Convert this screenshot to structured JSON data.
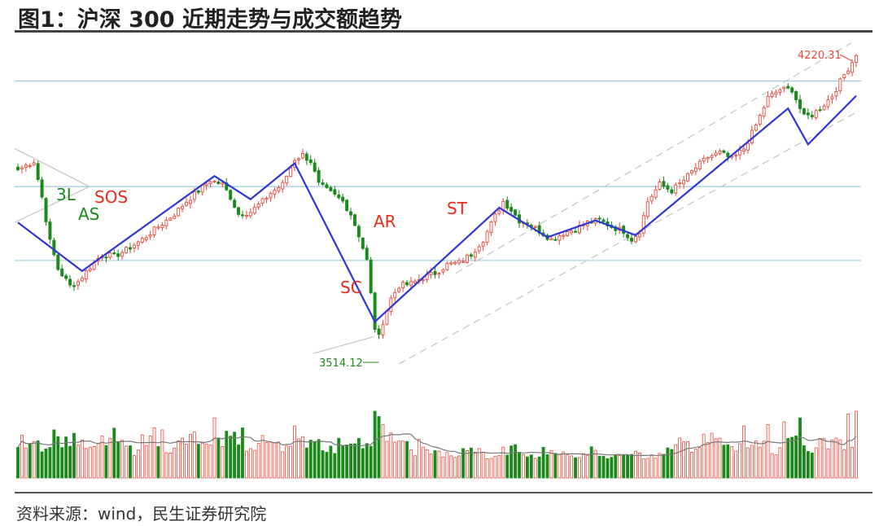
{
  "figure": {
    "title": "图1：沪深 300 近期走势与成交额趋势",
    "source": "资料来源：wind，民生证券研究院"
  },
  "colors": {
    "up": "#e84a3a",
    "up_fill": "#ffffff",
    "down": "#1b8a1b",
    "trend_line": "#2f36d8",
    "hline": "#9cc9dd",
    "channel": "#c4c4c4",
    "wyckoff_red": "#e82a1a",
    "wyckoff_green": "#1b8a1b",
    "ma_line": "#777777"
  },
  "chart_data": {
    "type": "candlestick",
    "title": "图1：沪深 300 近期走势与成交额趋势",
    "price_range": [
      3450,
      4250
    ],
    "annotations": [
      {
        "text": "4220.31",
        "kind": "max"
      },
      {
        "text": "3514.12",
        "kind": "min"
      },
      {
        "text": "3L",
        "color": "green"
      },
      {
        "text": "AS",
        "color": "green"
      },
      {
        "text": "SOS",
        "color": "red"
      },
      {
        "text": "SC",
        "color": "red"
      },
      {
        "text": "AR",
        "color": "red"
      },
      {
        "text": "ST",
        "color": "red"
      }
    ],
    "waypoints": [
      {
        "i": 0,
        "p": 3935
      },
      {
        "i": 4,
        "p": 3955
      },
      {
        "i": 6,
        "p": 3870
      },
      {
        "i": 8,
        "p": 3765
      },
      {
        "i": 10,
        "p": 3700
      },
      {
        "i": 13,
        "p": 3660
      },
      {
        "i": 15,
        "p": 3670
      },
      {
        "i": 18,
        "p": 3705
      },
      {
        "i": 21,
        "p": 3735
      },
      {
        "i": 24,
        "p": 3730
      },
      {
        "i": 27,
        "p": 3745
      },
      {
        "i": 31,
        "p": 3770
      },
      {
        "i": 35,
        "p": 3800
      },
      {
        "i": 39,
        "p": 3830
      },
      {
        "i": 42,
        "p": 3860
      },
      {
        "i": 45,
        "p": 3885
      },
      {
        "i": 48,
        "p": 3910
      },
      {
        "i": 51,
        "p": 3900
      },
      {
        "i": 53,
        "p": 3870
      },
      {
        "i": 55,
        "p": 3830
      },
      {
        "i": 58,
        "p": 3835
      },
      {
        "i": 61,
        "p": 3860
      },
      {
        "i": 63,
        "p": 3880
      },
      {
        "i": 66,
        "p": 3900
      },
      {
        "i": 69,
        "p": 3960
      },
      {
        "i": 71,
        "p": 3970
      },
      {
        "i": 73,
        "p": 3955
      },
      {
        "i": 75,
        "p": 3900
      },
      {
        "i": 78,
        "p": 3880
      },
      {
        "i": 81,
        "p": 3860
      },
      {
        "i": 83,
        "p": 3830
      },
      {
        "i": 85,
        "p": 3780
      },
      {
        "i": 87,
        "p": 3720
      },
      {
        "i": 89,
        "p": 3560
      },
      {
        "i": 90,
        "p": 3540
      },
      {
        "i": 91,
        "p": 3575
      },
      {
        "i": 93,
        "p": 3630
      },
      {
        "i": 95,
        "p": 3660
      },
      {
        "i": 98,
        "p": 3665
      },
      {
        "i": 101,
        "p": 3680
      },
      {
        "i": 104,
        "p": 3690
      },
      {
        "i": 107,
        "p": 3710
      },
      {
        "i": 110,
        "p": 3715
      },
      {
        "i": 113,
        "p": 3735
      },
      {
        "i": 116,
        "p": 3770
      },
      {
        "i": 119,
        "p": 3825
      },
      {
        "i": 121,
        "p": 3860
      },
      {
        "i": 123,
        "p": 3840
      },
      {
        "i": 125,
        "p": 3815
      },
      {
        "i": 127,
        "p": 3810
      },
      {
        "i": 130,
        "p": 3790
      },
      {
        "i": 133,
        "p": 3770
      },
      {
        "i": 136,
        "p": 3785
      },
      {
        "i": 139,
        "p": 3795
      },
      {
        "i": 142,
        "p": 3810
      },
      {
        "i": 145,
        "p": 3815
      },
      {
        "i": 148,
        "p": 3800
      },
      {
        "i": 151,
        "p": 3790
      },
      {
        "i": 153,
        "p": 3770
      },
      {
        "i": 155,
        "p": 3790
      },
      {
        "i": 157,
        "p": 3860
      },
      {
        "i": 160,
        "p": 3900
      },
      {
        "i": 163,
        "p": 3885
      },
      {
        "i": 166,
        "p": 3910
      },
      {
        "i": 169,
        "p": 3940
      },
      {
        "i": 172,
        "p": 3965
      },
      {
        "i": 175,
        "p": 3975
      },
      {
        "i": 178,
        "p": 3960
      },
      {
        "i": 181,
        "p": 3985
      },
      {
        "i": 184,
        "p": 4040
      },
      {
        "i": 187,
        "p": 4105
      },
      {
        "i": 190,
        "p": 4125
      },
      {
        "i": 193,
        "p": 4125
      },
      {
        "i": 195,
        "p": 4080
      },
      {
        "i": 196,
        "p": 4060
      },
      {
        "i": 198,
        "p": 4065
      },
      {
        "i": 200,
        "p": 4080
      },
      {
        "i": 203,
        "p": 4110
      },
      {
        "i": 206,
        "p": 4160
      },
      {
        "i": 208,
        "p": 4190
      },
      {
        "i": 209,
        "p": 4200
      }
    ],
    "wyckoff_path": [
      {
        "i": 0,
        "p": 3810
      },
      {
        "i": 16,
        "p": 3695
      },
      {
        "i": 49,
        "p": 3920
      },
      {
        "i": 58,
        "p": 3865
      },
      {
        "i": 69,
        "p": 3950
      },
      {
        "i": 89,
        "p": 3575
      },
      {
        "i": 120,
        "p": 3845
      },
      {
        "i": 132,
        "p": 3775
      },
      {
        "i": 144,
        "p": 3815
      },
      {
        "i": 154,
        "p": 3780
      },
      {
        "i": 192,
        "p": 4080
      },
      {
        "i": 197,
        "p": 3995
      },
      {
        "i": 209,
        "p": 4110
      }
    ],
    "horizontal_levels": [
      4145,
      3895,
      3720
    ],
    "volume": {
      "base_pattern": [
        0.55,
        0.6,
        0.58,
        0.62,
        0.68,
        0.6,
        0.52,
        0.5,
        0.46,
        0.44
      ],
      "spikes": [
        {
          "i": 9,
          "v": 0.72
        },
        {
          "i": 10,
          "v": 0.62
        },
        {
          "i": 34,
          "v": 0.75
        },
        {
          "i": 36,
          "v": 0.72
        },
        {
          "i": 49,
          "v": 0.9
        },
        {
          "i": 52,
          "v": 0.7
        },
        {
          "i": 56,
          "v": 0.75
        },
        {
          "i": 69,
          "v": 0.78
        },
        {
          "i": 89,
          "v": 1.0
        },
        {
          "i": 90,
          "v": 0.92
        },
        {
          "i": 91,
          "v": 0.8
        },
        {
          "i": 181,
          "v": 0.78
        },
        {
          "i": 187,
          "v": 0.8
        },
        {
          "i": 191,
          "v": 0.84
        },
        {
          "i": 195,
          "v": 0.9
        },
        {
          "i": 207,
          "v": 0.96
        },
        {
          "i": 209,
          "v": 1.0
        }
      ]
    }
  }
}
